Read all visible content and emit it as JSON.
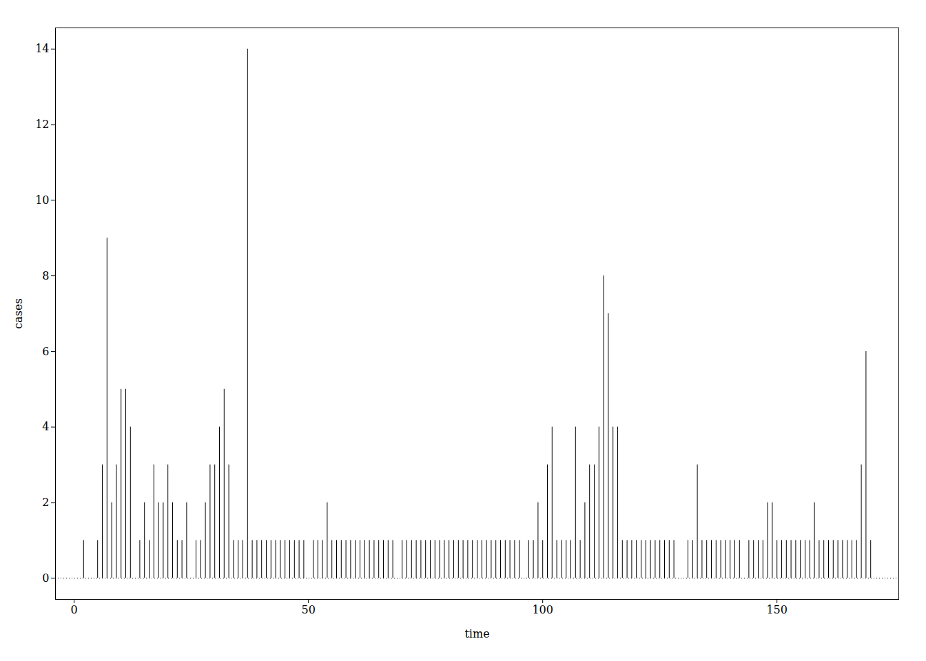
{
  "chart_data": {
    "type": "stem",
    "x": [
      1,
      2,
      3,
      4,
      5,
      6,
      7,
      8,
      9,
      10,
      11,
      12,
      13,
      14,
      15,
      16,
      17,
      18,
      19,
      20,
      21,
      22,
      23,
      24,
      25,
      26,
      27,
      28,
      29,
      30,
      31,
      32,
      33,
      34,
      35,
      36,
      37,
      38,
      39,
      40,
      41,
      42,
      43,
      44,
      45,
      46,
      47,
      48,
      49,
      50,
      51,
      52,
      53,
      54,
      55,
      56,
      57,
      58,
      59,
      60,
      61,
      62,
      63,
      64,
      65,
      66,
      67,
      68,
      69,
      70,
      71,
      72,
      73,
      74,
      75,
      76,
      77,
      78,
      79,
      80,
      81,
      82,
      83,
      84,
      85,
      86,
      87,
      88,
      89,
      90,
      91,
      92,
      93,
      94,
      95,
      96,
      97,
      98,
      99,
      100,
      101,
      102,
      103,
      104,
      105,
      106,
      107,
      108,
      109,
      110,
      111,
      112,
      113,
      114,
      115,
      116,
      117,
      118,
      119,
      120,
      121,
      122,
      123,
      124,
      125,
      126,
      127,
      128,
      129,
      130,
      131,
      132,
      133,
      134,
      135,
      136,
      137,
      138,
      139,
      140,
      141,
      142,
      143,
      144,
      145,
      146,
      147,
      148,
      149,
      150,
      151,
      152,
      153,
      154,
      155,
      156,
      157,
      158,
      159,
      160,
      161,
      162,
      163,
      164,
      165,
      166,
      167,
      168,
      169,
      170
    ],
    "values": [
      0,
      1,
      0,
      0,
      1,
      3,
      9,
      2,
      3,
      5,
      5,
      4,
      0,
      1,
      2,
      1,
      3,
      2,
      2,
      3,
      2,
      1,
      1,
      2,
      0,
      1,
      1,
      2,
      3,
      3,
      4,
      5,
      3,
      1,
      1,
      1,
      14,
      1,
      1,
      1,
      1,
      1,
      1,
      1,
      1,
      1,
      1,
      1,
      1,
      0,
      1,
      1,
      1,
      2,
      1,
      1,
      1,
      1,
      1,
      1,
      1,
      1,
      1,
      1,
      1,
      1,
      1,
      1,
      0,
      1,
      1,
      1,
      1,
      1,
      1,
      1,
      1,
      1,
      1,
      1,
      1,
      1,
      1,
      1,
      1,
      1,
      1,
      1,
      1,
      1,
      1,
      1,
      1,
      1,
      1,
      0,
      1,
      1,
      2,
      1,
      3,
      4,
      1,
      1,
      1,
      1,
      4,
      1,
      2,
      3,
      3,
      4,
      8,
      7,
      4,
      4,
      1,
      1,
      1,
      1,
      1,
      1,
      1,
      1,
      1,
      1,
      1,
      1,
      0,
      0,
      1,
      1,
      3,
      1,
      1,
      1,
      1,
      1,
      1,
      1,
      1,
      1,
      0,
      1,
      1,
      1,
      1,
      2,
      2,
      1,
      1,
      1,
      1,
      1,
      1,
      1,
      1,
      2,
      1,
      1,
      1,
      1,
      1,
      1,
      1,
      1,
      1,
      3,
      6,
      1
    ],
    "color": "#000000",
    "xlabel": "time",
    "ylabel": "cases",
    "xlim": [
      -4,
      176
    ],
    "ylim": [
      -0.56,
      14.56
    ],
    "xticks": [
      0,
      50,
      100,
      150
    ],
    "yticks": [
      0,
      2,
      4,
      6,
      8,
      10,
      12,
      14
    ],
    "reference_lines": [
      {
        "y": 0,
        "line_style": "dotted"
      }
    ],
    "grid": false
  }
}
